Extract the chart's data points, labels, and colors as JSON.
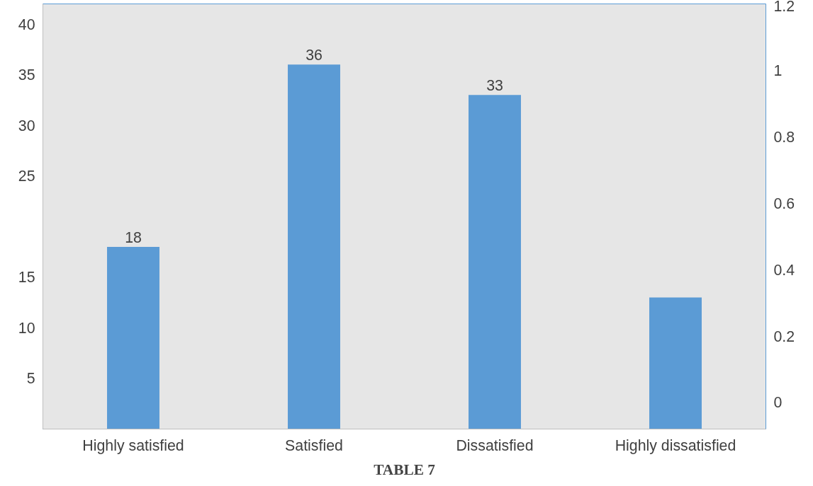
{
  "chart_data": {
    "type": "bar",
    "title": "TABLE 7",
    "categories": [
      "Highly satisfied",
      "Satisfied",
      "Dissatisfied",
      "Highly dissatisfied"
    ],
    "values": [
      18,
      36,
      33,
      13
    ],
    "color": "#5b9bd5",
    "value_labels": [
      "18",
      "36",
      "33",
      null
    ],
    "ylim": [
      0,
      42
    ],
    "yticks": [
      5,
      10,
      15,
      25,
      30,
      35,
      40
    ],
    "y2lim": [
      -0.08,
      1.2
    ],
    "y2ticks": [
      0,
      0.2,
      0.4,
      0.6,
      0.8,
      1,
      1.2
    ],
    "grid": false
  }
}
